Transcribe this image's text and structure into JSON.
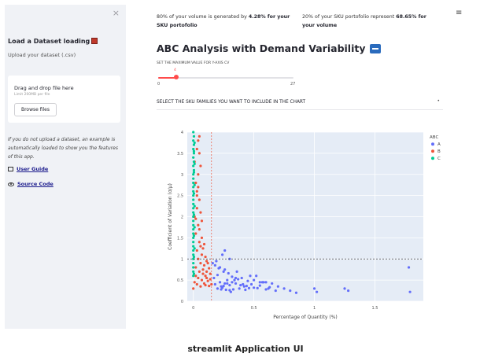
{
  "sidebar": {
    "close": "×",
    "title": "Load a Dataset loading",
    "subtitle": "Upload your dataset (.csv)",
    "uploader": {
      "title": "Drag and drop file here",
      "limit": "Limit 200MB per file",
      "button": "Browse files"
    },
    "note": "If you do not upload a dataset, an example is automatically loaded to show you the features of this app.",
    "user_guide": "User Guide",
    "source_code": "Source Code"
  },
  "header": {
    "kpi1_pre": "80% of your volume is generated by ",
    "kpi1_bold1": "4.28% for your",
    "kpi1_bold2": "SKU portofolio",
    "kpi2_pre": "20% of your SKU portofolio represent ",
    "kpi2_bold1": "68.65% for",
    "kpi2_bold2": "your volume",
    "menu_icon": "≡"
  },
  "main": {
    "title": "ABC Analysis with Demand Variability",
    "slider": {
      "label": "SET THE MAXIMUM VALUE FOR Y-AXIS CV",
      "value": 4,
      "min": 0,
      "max": 27,
      "value_label": "4",
      "min_label": "0",
      "max_label": "27"
    },
    "multiselect_label": "SELECT THE SKU FAMILIES YOU WANT TO INCLUDE IN THE CHART"
  },
  "caption": "streamlit Application UI",
  "chart_data": {
    "type": "scatter",
    "xlabel": "Percentage of Quantity (%)",
    "ylabel": "Coefficient of Variation (σ/μ)",
    "xlim": [
      -0.05,
      1.9
    ],
    "ylim": [
      0,
      4
    ],
    "x_ticks": [
      0,
      0.5,
      1,
      1.5
    ],
    "x_tick_labels": [
      "0",
      "0.5",
      "1",
      "1.5"
    ],
    "y_ticks": [
      0,
      0.5,
      1,
      1.5,
      2,
      2.5,
      3,
      3.5,
      4
    ],
    "y_tick_labels": [
      "0",
      "0.5",
      "1",
      "1.5",
      "2",
      "2.5",
      "3",
      "3.5",
      "4"
    ],
    "legend_title": "ABC",
    "legend_position": "right",
    "grid": true,
    "colors": {
      "A": "#636efa",
      "B": "#ef553b",
      "C": "#00cc96",
      "plot_bg": "#e5ecf6",
      "ref_line": "#444444"
    },
    "reference_lines": {
      "y": 1,
      "x": 0.15
    },
    "series": [
      {
        "name": "A",
        "x": [
          0.17,
          0.2,
          0.22,
          0.25,
          0.28,
          0.3,
          0.32,
          0.35,
          0.38,
          0.4,
          0.42,
          0.45,
          0.48,
          0.5,
          0.52,
          0.55,
          0.58,
          0.6,
          0.63,
          0.65,
          0.68,
          0.7,
          0.75,
          0.8,
          0.85,
          0.18,
          0.21,
          0.24,
          0.27,
          0.29,
          0.31,
          0.34,
          0.36,
          0.39,
          0.43,
          0.46,
          0.5,
          0.55,
          0.62,
          0.19,
          0.23,
          0.26,
          0.33,
          0.37,
          0.41,
          0.44,
          0.47,
          0.53,
          0.57,
          0.16,
          0.18,
          0.2,
          0.23,
          0.26,
          0.3,
          0.22,
          0.25,
          0.28,
          0.32,
          0.35,
          0.6,
          1.0,
          1.02,
          1.25,
          1.28,
          1.78,
          1.79,
          0.24,
          0.26,
          0.3
        ],
        "y": [
          0.55,
          0.62,
          0.45,
          0.7,
          0.5,
          0.38,
          0.58,
          0.42,
          0.3,
          0.55,
          0.35,
          0.48,
          0.4,
          0.32,
          0.6,
          0.37,
          0.45,
          0.28,
          0.33,
          0.42,
          0.25,
          0.35,
          0.3,
          0.25,
          0.2,
          0.85,
          0.78,
          0.32,
          0.27,
          0.66,
          0.22,
          0.5,
          0.7,
          0.38,
          0.27,
          0.31,
          0.5,
          0.45,
          0.3,
          0.95,
          0.35,
          0.42,
          0.28,
          0.52,
          0.4,
          0.36,
          0.6,
          0.31,
          0.45,
          0.9,
          0.4,
          0.3,
          0.28,
          0.75,
          0.26,
          0.8,
          0.36,
          0.42,
          0.45,
          0.55,
          0.45,
          0.3,
          0.22,
          0.3,
          0.25,
          0.8,
          0.22,
          1.1,
          1.2,
          1.0
        ]
      },
      {
        "name": "B",
        "x": [
          0.0,
          0.01,
          0.02,
          0.03,
          0.04,
          0.05,
          0.06,
          0.07,
          0.08,
          0.09,
          0.1,
          0.11,
          0.12,
          0.13,
          0.14,
          0.15,
          0.02,
          0.04,
          0.06,
          0.08,
          0.1,
          0.03,
          0.05,
          0.07,
          0.09,
          0.11,
          0.02,
          0.04,
          0.06,
          0.01,
          0.03,
          0.05,
          0.07,
          0.12,
          0.14,
          0.08,
          0.1,
          0.03,
          0.05,
          0.02,
          0.04,
          0.06,
          0.01,
          0.03,
          0.05,
          0.09,
          0.13,
          0.07,
          0.11,
          0.04,
          0.06,
          0.02,
          0.03,
          0.05,
          0.04
        ],
        "y": [
          0.3,
          0.45,
          0.6,
          0.4,
          0.55,
          0.7,
          0.35,
          0.5,
          0.65,
          0.42,
          0.38,
          0.55,
          0.48,
          0.36,
          0.52,
          0.4,
          0.8,
          1.0,
          0.9,
          0.75,
          0.6,
          1.2,
          1.4,
          1.1,
          0.85,
          0.7,
          1.6,
          1.8,
          1.3,
          2.0,
          2.2,
          1.7,
          1.5,
          0.9,
          0.65,
          1.25,
          1.05,
          2.5,
          2.4,
          2.8,
          3.0,
          2.1,
          3.3,
          3.6,
          3.9,
          1.35,
          0.78,
          1.9,
          0.95,
          2.7,
          3.2,
          1.95,
          2.6,
          3.5,
          3.8
        ]
      },
      {
        "name": "C",
        "x": [
          0,
          0,
          0,
          0,
          0,
          0,
          0,
          0,
          0,
          0,
          0,
          0,
          0,
          0,
          0,
          0,
          0,
          0,
          0,
          0,
          0,
          0,
          0,
          0,
          0,
          0,
          0,
          0,
          0,
          0,
          0.005,
          0.005,
          0.005,
          0.005,
          0.005,
          0.005,
          0.005,
          0.005,
          0.005,
          0.005,
          0.005,
          0.005,
          0.01,
          0.01,
          0.01,
          0.01,
          0.01,
          0.01
        ],
        "y": [
          0.6,
          0.8,
          1.0,
          1.2,
          1.4,
          1.6,
          1.8,
          2.0,
          2.2,
          2.4,
          2.6,
          2.8,
          3.0,
          3.2,
          3.4,
          3.6,
          3.8,
          4.0,
          0.7,
          0.9,
          1.1,
          1.3,
          1.5,
          1.7,
          1.9,
          2.1,
          2.3,
          2.5,
          2.7,
          2.9,
          3.1,
          3.3,
          3.5,
          3.7,
          3.9,
          2.05,
          2.55,
          3.05,
          3.55,
          1.05,
          1.55,
          0.65,
          1.25,
          1.75,
          2.25,
          2.75,
          3.25,
          3.75
        ]
      }
    ]
  }
}
